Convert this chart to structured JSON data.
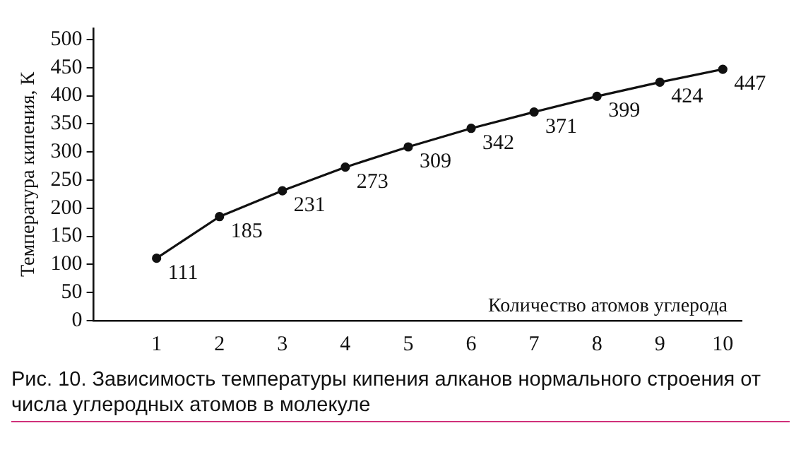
{
  "chart_data": {
    "type": "line",
    "xlabel": "Количество атомов углерода",
    "ylabel": "Температура кипения, К",
    "x": [
      1,
      2,
      3,
      4,
      5,
      6,
      7,
      8,
      9,
      10
    ],
    "series": [
      {
        "color": "#111111",
        "values": [
          111,
          185,
          231,
          273,
          309,
          342,
          371,
          399,
          424,
          447
        ]
      }
    ],
    "xlim": [
      0,
      10.3
    ],
    "xticks": [
      1,
      2,
      3,
      4,
      5,
      6,
      7,
      8,
      9,
      10
    ],
    "ylim": [
      0,
      520
    ],
    "yticks": [
      0,
      50,
      100,
      150,
      200,
      250,
      300,
      350,
      400,
      450,
      500
    ],
    "grid": false,
    "legend": false,
    "marker": "circle",
    "line_style": "solid",
    "data_labels": true,
    "annotations": [
      "Рис. 10. Зависимость температуры кипения алканов нормального строения от числа углеродных атомов в молекуле"
    ]
  }
}
